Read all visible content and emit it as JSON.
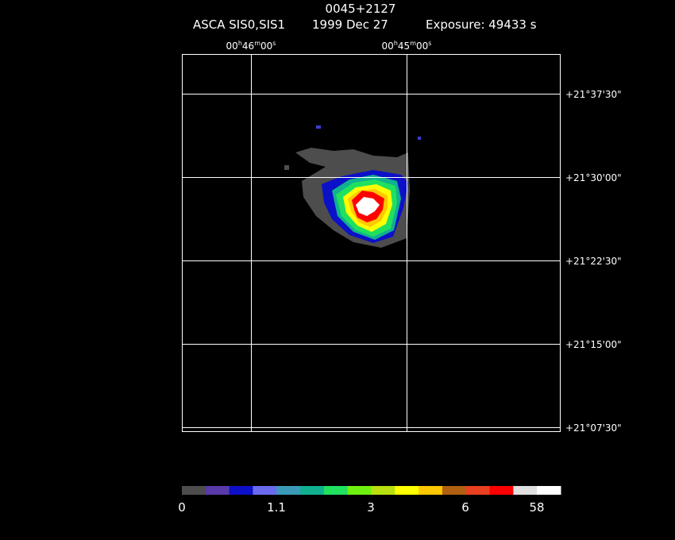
{
  "header": {
    "title": "0045+2127",
    "instrument": "ASCA SIS0,SIS1",
    "date": "1999 Dec 27",
    "exposure": "Exposure: 49433 s"
  },
  "ra_labels": [
    [
      "00",
      "h",
      "46",
      "m",
      "00",
      "s"
    ],
    [
      "00",
      "h",
      "45",
      "m",
      "00",
      "s"
    ]
  ],
  "dec_labels": [
    "+21°37'30\"",
    "+21°30'00\"",
    "+21°22'30\"",
    "+21°15'00\"",
    "+21°07'30\""
  ],
  "colorbar": {
    "colors": [
      "#4d4d4d",
      "#5a3aa8",
      "#0c10c8",
      "#6a6af0",
      "#3c9ab8",
      "#10b090",
      "#20e060",
      "#70f010",
      "#b8e010",
      "#ffff00",
      "#ffc800",
      "#b06010",
      "#e84020",
      "#ff0000",
      "#e0e0e0",
      "#ffffff"
    ],
    "labels": [
      "0",
      "1.1",
      "3",
      "6",
      "58"
    ]
  }
}
